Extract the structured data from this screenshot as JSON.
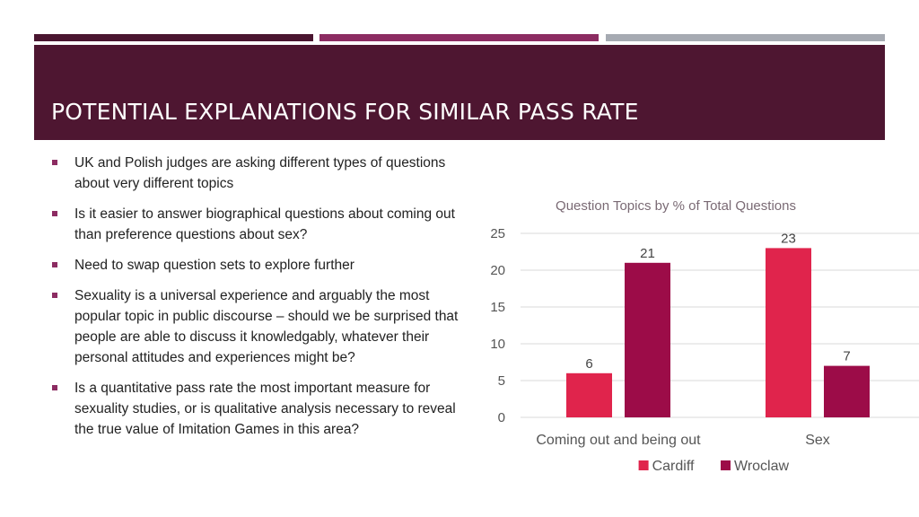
{
  "colors": {
    "accent_dark": "#4a1530",
    "accent_mid": "#8c2c62",
    "accent_grey": "#a6aab2",
    "title_band": "#4e1631",
    "bullet_marker": "#8c2c62",
    "cardiff": "#e0244c",
    "wroclaw": "#9c0c48"
  },
  "slide": {
    "title": "POTENTIAL EXPLANATIONS FOR SIMILAR PASS RATE",
    "bullets": [
      "UK and Polish judges are asking different types of questions about very different topics",
      "Is it easier to answer biographical questions about coming out than preference questions about sex?",
      "Need to swap question sets to explore further",
      "Sexuality is a universal experience and arguably the most popular topic in public discourse – should we be surprised that people are able to discuss it knowledgably, whatever their personal attitudes and experiences might be?",
      "Is a quantitative pass rate the most important measure for sexuality studies, or is qualitative analysis necessary to reveal the true value of Imitation Games in this area?"
    ]
  },
  "chart_data": {
    "type": "bar",
    "title": "Question Topics by % of Total Questions",
    "categories": [
      "Coming out and being out",
      "Sex"
    ],
    "series": [
      {
        "name": "Cardiff",
        "values": [
          6,
          23
        ],
        "color": "#e0244c"
      },
      {
        "name": "Wroclaw",
        "values": [
          21,
          7
        ],
        "color": "#9c0c48"
      }
    ],
    "ylim": [
      0,
      25
    ],
    "yticks": [
      0,
      5,
      10,
      15,
      20,
      25
    ],
    "grid": true,
    "legend": "bottom",
    "data_labels": true
  }
}
